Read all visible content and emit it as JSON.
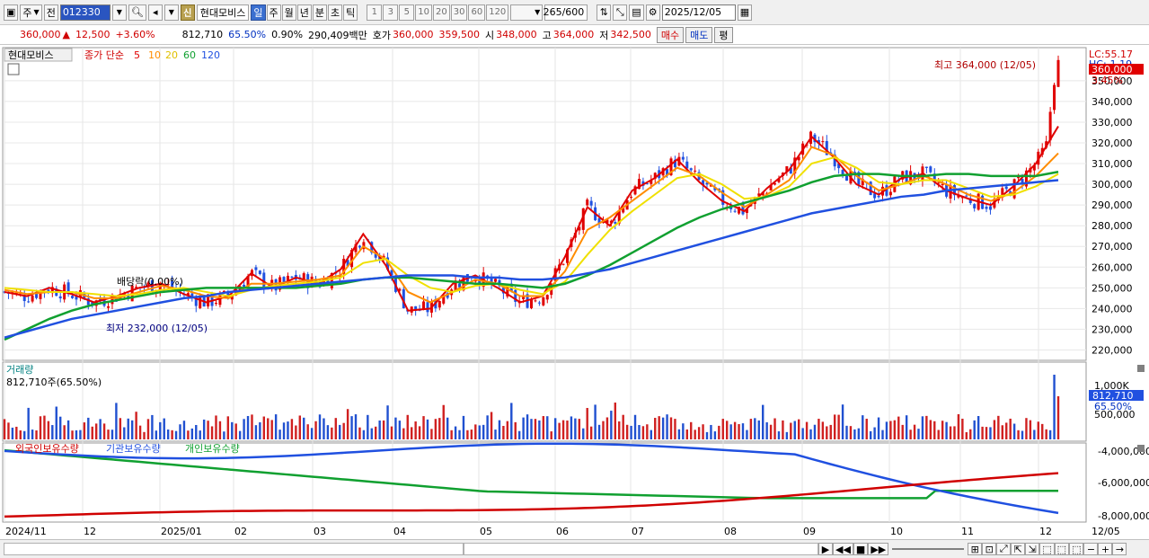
{
  "toolbar": {
    "type_select": "주",
    "prev_label": "전",
    "stock_code": "012330",
    "shin_label": "신",
    "stock_name": "현대모비스",
    "periods": [
      "일",
      "주",
      "월",
      "년",
      "분",
      "초",
      "틱"
    ],
    "active_period": "일",
    "intervals": [
      "1",
      "3",
      "5",
      "10",
      "20",
      "30",
      "60",
      "120"
    ],
    "count": "265",
    "count_max": "/600",
    "date": "2025/12/05"
  },
  "info": {
    "price": "360,000",
    "change": "12,500",
    "change_pct": "+3.60%",
    "volume": "812,710",
    "vol_ratio": "65.50%",
    "turnover": "0.90%",
    "amount": "290,409백만",
    "ask_label": "호가",
    "ask1": "360,000",
    "ask2": "359,500",
    "open_label": "시",
    "open": "348,000",
    "high_label": "고",
    "high": "364,000",
    "low_label": "저",
    "low": "342,500",
    "buy_btn": "매수",
    "sell_btn": "매도",
    "eval_btn": "평"
  },
  "price_panel": {
    "name_tag": "현대모비스",
    "ma_title": "종가 단순",
    "ma_periods": [
      "5",
      "10",
      "20",
      "60",
      "120"
    ],
    "ma_colors": [
      "#e00000",
      "#ff8c00",
      "#f0e000",
      "#10a030",
      "#2050e0"
    ],
    "high_annot": "최고 364,000 (12/05)",
    "low_annot": "최저 232,000 (12/05)",
    "dividend_annot": "배당락(0.00%)",
    "lc_label": "LC:55.17",
    "hc_label": "HC:-1.19",
    "last_price_tag": "360,000",
    "last_pct_tag": "3.45%",
    "y_ticks": [
      "350,000",
      "340,000",
      "330,000",
      "320,000",
      "310,000",
      "300,000",
      "290,000",
      "280,000",
      "270,000",
      "260,000",
      "250,000",
      "240,000",
      "230,000",
      "220,000"
    ]
  },
  "volume_panel": {
    "title": "거래량",
    "current": "812,710주(65.50%)",
    "y_tick": "1,000K",
    "y_tick2": "500,000",
    "last_tag": "812,710",
    "last_pct": "65.50%"
  },
  "holdings_panel": {
    "legend": [
      "외국인보유수량",
      "기관보유수량",
      "개인보유수량"
    ],
    "legend_colors": [
      "#d00000",
      "#2050e0",
      "#10a030"
    ],
    "y_ticks": [
      "-4,000,000",
      "-6,000,000",
      "-8,000,000"
    ]
  },
  "x_axis": {
    "labels": [
      "2024/11",
      "12",
      "2025/01",
      "02",
      "03",
      "04",
      "05",
      "06",
      "07",
      "08",
      "09",
      "10",
      "11",
      "12"
    ],
    "right_label": "12/05"
  },
  "chart_data": {
    "type": "line",
    "title": "",
    "series": [
      {
        "name": "5",
        "values": [
          248,
          246,
          250,
          247,
          243,
          246,
          250,
          252,
          247,
          243,
          246,
          257,
          250,
          255,
          252,
          259,
          276,
          261,
          239,
          240,
          252,
          256,
          250,
          243,
          246,
          265,
          289,
          280,
          297,
          303,
          312,
          301,
          292,
          287,
          298,
          307,
          323,
          313,
          300,
          295,
          303,
          305,
          297,
          293,
          290,
          299,
          310,
          328
        ]
      },
      {
        "name": "10",
        "values": [
          249,
          247,
          248,
          248,
          245,
          245,
          248,
          251,
          249,
          246,
          245,
          252,
          252,
          253,
          254,
          256,
          270,
          264,
          248,
          243,
          248,
          254,
          252,
          246,
          246,
          258,
          278,
          284,
          292,
          300,
          308,
          304,
          296,
          289,
          295,
          302,
          318,
          314,
          304,
          297,
          300,
          304,
          300,
          295,
          292,
          296,
          304,
          315
        ]
      },
      {
        "name": "20",
        "values": [
          250,
          249,
          248,
          248,
          247,
          246,
          247,
          249,
          250,
          248,
          246,
          249,
          251,
          252,
          253,
          255,
          262,
          264,
          256,
          250,
          248,
          251,
          252,
          249,
          247,
          253,
          266,
          278,
          287,
          295,
          303,
          305,
          300,
          293,
          294,
          299,
          310,
          313,
          308,
          301,
          300,
          302,
          302,
          298,
          294,
          295,
          299,
          305
        ]
      },
      {
        "name": "60",
        "values": [
          225,
          230,
          235,
          239,
          242,
          244,
          246,
          248,
          249,
          250,
          250,
          250,
          250,
          250,
          251,
          252,
          254,
          255,
          255,
          254,
          253,
          252,
          252,
          251,
          250,
          252,
          256,
          261,
          267,
          273,
          279,
          284,
          288,
          291,
          294,
          297,
          301,
          304,
          305,
          305,
          304,
          304,
          305,
          305,
          304,
          304,
          304,
          306
        ]
      },
      {
        "name": "120",
        "values": [
          226,
          229,
          232,
          235,
          237,
          239,
          241,
          243,
          245,
          246,
          248,
          249,
          250,
          251,
          252,
          253,
          254,
          255,
          256,
          256,
          256,
          255,
          255,
          254,
          254,
          255,
          257,
          259,
          262,
          265,
          268,
          271,
          274,
          277,
          280,
          283,
          286,
          288,
          290,
          292,
          294,
          295,
          297,
          298,
          299,
          300,
          301,
          302
        ]
      }
    ],
    "ylim": [
      215,
      366
    ]
  }
}
